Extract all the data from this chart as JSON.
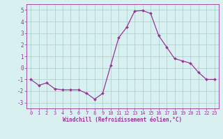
{
  "x": [
    0,
    1,
    2,
    3,
    4,
    5,
    6,
    7,
    8,
    9,
    10,
    11,
    12,
    13,
    14,
    15,
    16,
    17,
    18,
    19,
    20,
    21,
    22,
    23
  ],
  "y": [
    -1.0,
    -1.5,
    -1.3,
    -1.8,
    -1.9,
    -1.9,
    -1.9,
    -2.2,
    -2.7,
    -2.2,
    0.2,
    2.6,
    3.5,
    4.9,
    4.95,
    4.7,
    2.8,
    1.8,
    0.8,
    0.6,
    0.4,
    -0.4,
    -1.0,
    -1.0
  ],
  "line_color": "#993399",
  "marker": "D",
  "marker_size": 2,
  "bg_color": "#d8f0f0",
  "grid_color": "#aacccc",
  "xlabel": "Windchill (Refroidissement éolien,°C)",
  "xlim": [
    -0.5,
    23.5
  ],
  "ylim": [
    -3.5,
    5.5
  ],
  "yticks": [
    -3,
    -2,
    -1,
    0,
    1,
    2,
    3,
    4,
    5
  ],
  "xticks": [
    0,
    1,
    2,
    3,
    4,
    5,
    6,
    7,
    8,
    9,
    10,
    11,
    12,
    13,
    14,
    15,
    16,
    17,
    18,
    19,
    20,
    21,
    22,
    23
  ]
}
